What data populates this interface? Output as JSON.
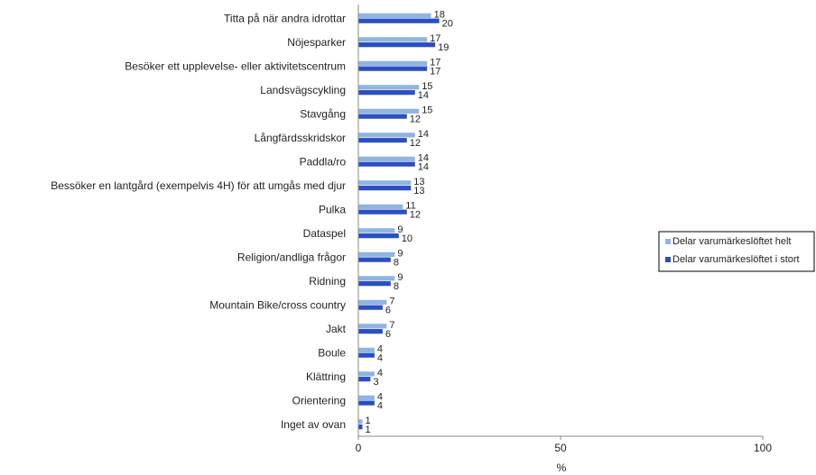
{
  "chart_data": {
    "type": "bar",
    "orientation": "horizontal",
    "categories": [
      "Titta på när andra idrottar",
      "Nöjesparker",
      "Besöker ett upplevelse- eller aktivitetscentrum",
      "Landsvägscykling",
      "Stavgång",
      "Långfärdsskridskor",
      "Paddla/ro",
      "Bessöker en lantgård (exempelvis 4H) för att umgås med djur",
      "Pulka",
      "Dataspel",
      "Religion/andliga frågor",
      "Ridning",
      "Mountain Bike/cross country",
      "Jakt",
      "Boule",
      "Klättring",
      "Orientering",
      "Inget av ovan"
    ],
    "series": [
      {
        "name": "Delar varumärkeslöftet helt",
        "color": "#8fb4e3",
        "values": [
          18,
          17,
          17,
          15,
          15,
          14,
          14,
          13,
          11,
          9,
          9,
          9,
          7,
          7,
          4,
          4,
          4,
          1
        ]
      },
      {
        "name": "Delar varumärkeslöftet i stort",
        "color": "#2a4fc0",
        "values": [
          20,
          19,
          17,
          14,
          12,
          12,
          14,
          13,
          12,
          10,
          8,
          8,
          6,
          6,
          4,
          3,
          4,
          1
        ]
      }
    ],
    "xlabel": "%",
    "xlim": [
      0,
      100
    ],
    "xticks": [
      0,
      50,
      100
    ],
    "legend_position": "right",
    "grid": false
  }
}
